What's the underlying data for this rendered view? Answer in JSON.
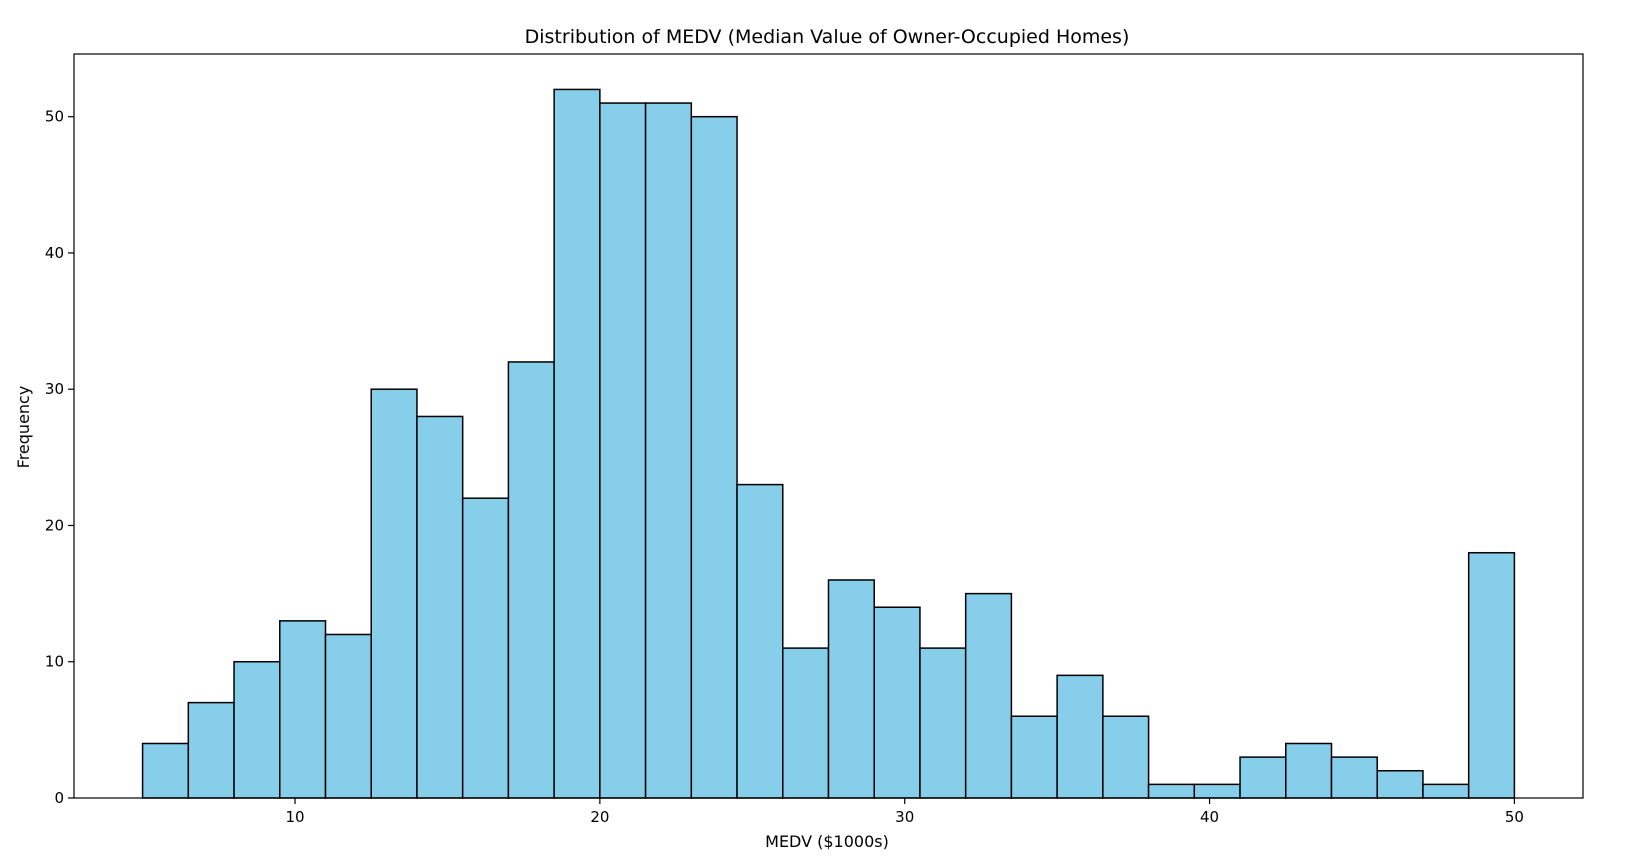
{
  "chart_data": {
    "type": "bar",
    "title": "Distribution of MEDV (Median Value of Owner-Occupied Homes)",
    "xlabel": "MEDV ($1000s)",
    "ylabel": "Frequency",
    "bin_start": 5,
    "bin_end": 50,
    "bin_width": 1.5,
    "values": [
      4,
      7,
      10,
      13,
      12,
      30,
      28,
      22,
      32,
      52,
      51,
      51,
      50,
      23,
      11,
      16,
      14,
      11,
      15,
      6,
      9,
      6,
      1,
      1,
      3,
      4,
      3,
      2,
      1,
      18
    ],
    "xlim": [
      2.75,
      52.25
    ],
    "ylim": [
      0,
      54.6
    ],
    "xticks": [
      10,
      20,
      30,
      40,
      50
    ],
    "yticks": [
      0,
      10,
      20,
      30,
      40,
      50
    ],
    "grid": false,
    "legend": "none",
    "bar_color": "#87ceeb",
    "edge_color": "#000000"
  }
}
